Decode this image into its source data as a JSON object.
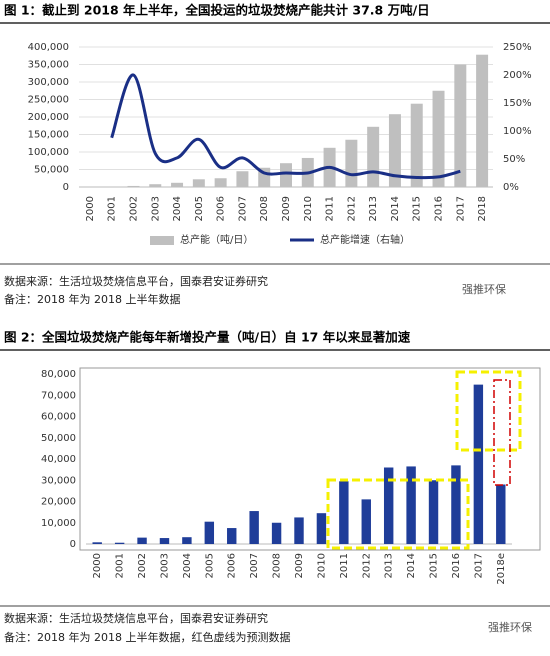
{
  "chart_data": [
    {
      "type": "bar",
      "title": "图 1：截止到 2018 年上半年，全国投运的垃圾焚烧产能共计 37.8 万吨/日",
      "categories": [
        "2000",
        "2001",
        "2002",
        "2003",
        "2004",
        "2005",
        "2006",
        "2007",
        "2008",
        "2009",
        "2010",
        "2011",
        "2012",
        "2013",
        "2014",
        "2015",
        "2016",
        "2017",
        "2018"
      ],
      "series": [
        {
          "name": "总产能（吨/日）",
          "type": "bar",
          "color": "#bfbfbf",
          "values": [
            0,
            0,
            3000,
            8000,
            12000,
            22000,
            25000,
            45000,
            55000,
            68000,
            83000,
            112000,
            135000,
            172000,
            208000,
            238000,
            275000,
            350000,
            378000
          ]
        },
        {
          "name": "总产能增速（右轴）",
          "type": "line",
          "axis": "y2",
          "color": "#1a2f86",
          "values": [
            null,
            88,
            200,
            60,
            52,
            85,
            35,
            52,
            25,
            25,
            25,
            35,
            22,
            27,
            20,
            17,
            18,
            28,
            null
          ]
        }
      ],
      "ylim": [
        0,
        400000
      ],
      "yticks": [
        0,
        {
          "value": 50000,
          "label": "50,000"
        },
        {
          "value": 100000,
          "label": "100,000"
        },
        {
          "value": 150000,
          "label": "150,000"
        },
        {
          "value": 200000,
          "label": "200,000"
        },
        {
          "value": 250000,
          "label": "250,000"
        },
        {
          "value": 300000,
          "label": "300,000"
        },
        {
          "value": 350000,
          "label": "350,000"
        },
        {
          "value": 400000,
          "label": "400,000"
        }
      ],
      "y2lim": [
        0,
        250
      ],
      "y2ticks": [
        {
          "value": 0,
          "label": "0%"
        },
        {
          "value": 50,
          "label": "50%"
        },
        {
          "value": 100,
          "label": "100%"
        },
        {
          "value": 150,
          "label": "150%"
        },
        {
          "value": 200,
          "label": "200%"
        },
        {
          "value": 250,
          "label": "250%"
        }
      ],
      "grid": true,
      "source": "数据来源：生活垃圾焚烧信息平台，国泰君安证券研究",
      "note": "备注：2018 年为 2018 上半年数据",
      "watermark": "强推环保"
    },
    {
      "type": "bar",
      "title": "图 2：全国垃圾焚烧产能每年新增投产量（吨/日）自 17 年以来显著加速",
      "categories": [
        "2000",
        "2001",
        "2002",
        "2003",
        "2004",
        "2005",
        "2006",
        "2007",
        "2008",
        "2009",
        "2010",
        "2011",
        "2012",
        "2013",
        "2014",
        "2015",
        "2016",
        "2017",
        "2018e"
      ],
      "series": [
        {
          "type": "bar",
          "color": "#1f3d99",
          "values": [
            800,
            600,
            3000,
            2800,
            3200,
            10500,
            7500,
            15500,
            10000,
            12500,
            14500,
            29500,
            21000,
            36000,
            36500,
            30000,
            37000,
            75000,
            28000
          ]
        }
      ],
      "ylim": [
        0,
        80000
      ],
      "yticks": [
        0,
        {
          "value": 10000,
          "label": "10,000"
        },
        {
          "value": 20000,
          "label": "20,000"
        },
        {
          "value": 30000,
          "label": "30,000"
        },
        {
          "value": 40000,
          "label": "40,000"
        },
        {
          "value": 50000,
          "label": "50,000"
        },
        {
          "value": 60000,
          "label": "60,000"
        },
        {
          "value": 70000,
          "label": "70,000"
        },
        {
          "value": 80000,
          "label": "80,000"
        }
      ],
      "grid": false,
      "source": "数据来源：生活垃圾焚烧信息平台，国泰君安证券研究",
      "note": "备注：2018 年为 2018 上半年数据，红色虚线为预测数据",
      "watermark": "强推环保"
    }
  ]
}
